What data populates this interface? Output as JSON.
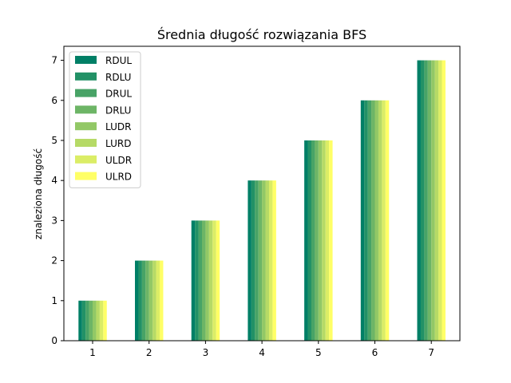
{
  "chart_data": {
    "type": "bar",
    "title": "Średnia długość rozwiązania BFS",
    "xlabel": "",
    "ylabel": "znaleziona długość",
    "categories": [
      "1",
      "2",
      "3",
      "4",
      "5",
      "6",
      "7"
    ],
    "yticks": [
      "0",
      "1",
      "2",
      "3",
      "4",
      "5",
      "6",
      "7"
    ],
    "ylim": [
      0,
      7.35
    ],
    "grid": false,
    "legend_position": "top-left",
    "series": [
      {
        "name": "RDUL",
        "color": "#007f66",
        "values": [
          1,
          2,
          3,
          4,
          5,
          6,
          7
        ]
      },
      {
        "name": "RDLU",
        "color": "#229166",
        "values": [
          1,
          2,
          3,
          4,
          5,
          6,
          7
        ]
      },
      {
        "name": "DRUL",
        "color": "#48a366",
        "values": [
          1,
          2,
          3,
          4,
          5,
          6,
          7
        ]
      },
      {
        "name": "DRLU",
        "color": "#6db566",
        "values": [
          1,
          2,
          3,
          4,
          5,
          6,
          7
        ]
      },
      {
        "name": "LUDR",
        "color": "#92c866",
        "values": [
          1,
          2,
          3,
          4,
          5,
          6,
          7
        ]
      },
      {
        "name": "LURD",
        "color": "#b6da66",
        "values": [
          1,
          2,
          3,
          4,
          5,
          6,
          7
        ]
      },
      {
        "name": "ULDR",
        "color": "#dbed66",
        "values": [
          1,
          2,
          3,
          4,
          5,
          6,
          7
        ]
      },
      {
        "name": "ULRD",
        "color": "#ffff66",
        "values": [
          1,
          2,
          3,
          4,
          5,
          6,
          7
        ]
      }
    ]
  }
}
